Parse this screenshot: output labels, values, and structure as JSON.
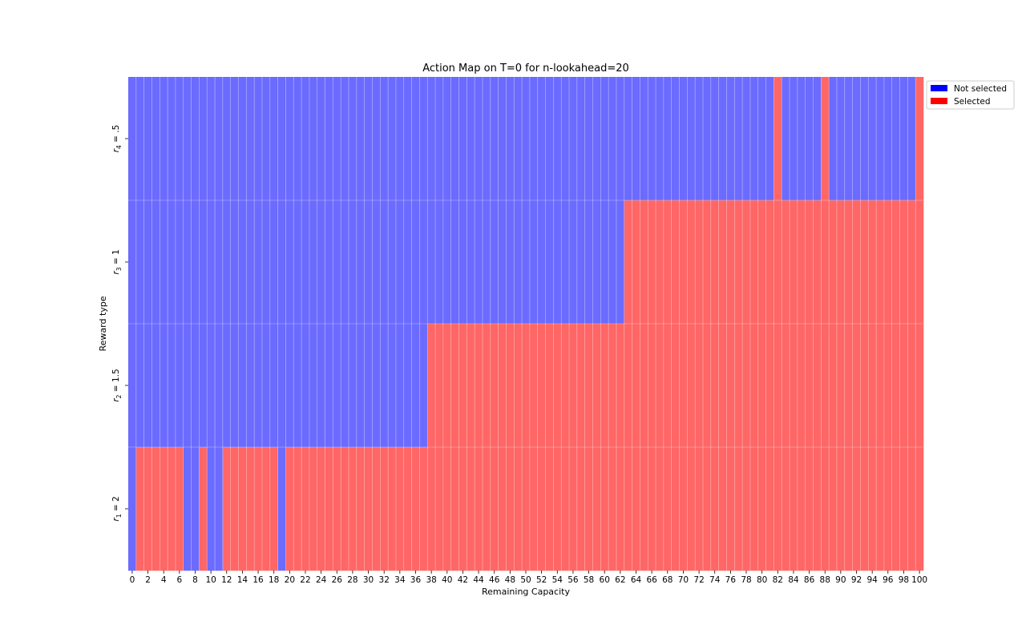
{
  "chart_data": {
    "type": "heatmap",
    "title": "Action Map on T=0 for n-lookahead=20",
    "xlabel": "Remaining Capacity",
    "ylabel": "Reward type",
    "x_range": [
      0,
      100
    ],
    "x_tick_step": 2,
    "rows": [
      {
        "label_base": "r",
        "label_sub": "4",
        "label_value": " = .5",
        "selected_ranges": [
          [
            82,
            82
          ],
          [
            88,
            88
          ],
          [
            100,
            100
          ]
        ]
      },
      {
        "label_base": "r",
        "label_sub": "3",
        "label_value": " = 1",
        "selected_ranges": [
          [
            63,
            100
          ]
        ]
      },
      {
        "label_base": "r",
        "label_sub": "2",
        "label_value": " = 1.5",
        "selected_ranges": [
          [
            38,
            100
          ]
        ]
      },
      {
        "label_base": "r",
        "label_sub": "1",
        "label_value": " = 2",
        "selected_ranges": [
          [
            1,
            6
          ],
          [
            9,
            9
          ],
          [
            12,
            18
          ],
          [
            20,
            100
          ]
        ]
      }
    ],
    "legend": {
      "position": "outside-top-right",
      "entries": [
        {
          "label": "Not selected",
          "color": "#0000ff"
        },
        {
          "label": "Selected",
          "color": "#ff0000"
        }
      ]
    },
    "cell_colors": {
      "not_selected": "#6b6bff",
      "selected": "#ff6666"
    }
  }
}
